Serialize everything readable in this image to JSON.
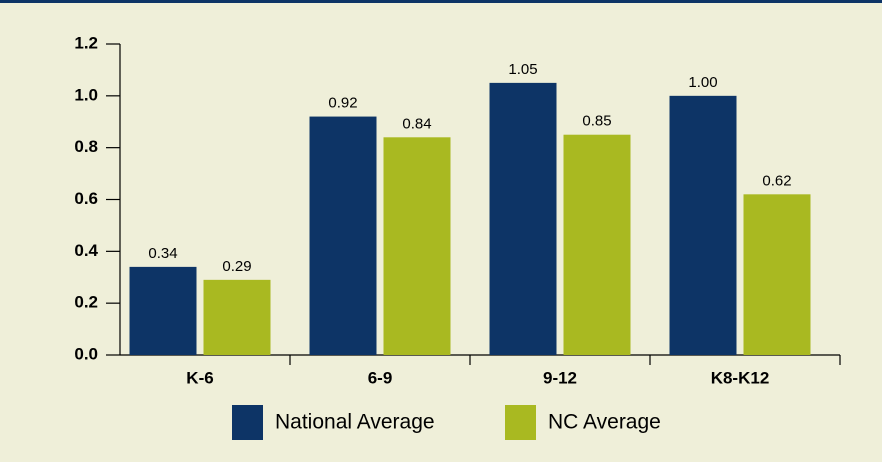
{
  "chart_data": {
    "type": "bar",
    "categories": [
      "K-6",
      "6-9",
      "9-12",
      "K8-K12"
    ],
    "series": [
      {
        "name": "National Average",
        "color": "#0d3466",
        "values": [
          0.34,
          0.92,
          1.05,
          1.0
        ],
        "value_labels": [
          "0.34",
          "0.92",
          "1.05",
          "1.00"
        ]
      },
      {
        "name": "NC Average",
        "color": "#a9b921",
        "values": [
          0.29,
          0.84,
          0.85,
          0.62
        ],
        "value_labels": [
          "0.29",
          "0.84",
          "0.85",
          "0.62"
        ]
      }
    ],
    "ylim": [
      0,
      1.2
    ],
    "yticks": [
      {
        "value": 0,
        "label": "0.0"
      },
      0.2,
      0.4,
      0.6,
      0.8,
      {
        "value": 1,
        "label": "1.0"
      },
      1.2
    ],
    "grid": false
  }
}
